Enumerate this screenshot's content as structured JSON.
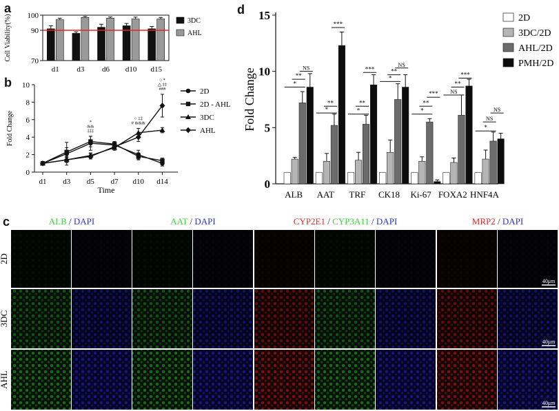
{
  "panels": {
    "a": "a",
    "b": "b",
    "c": "c",
    "d": "d"
  },
  "chart_data": [
    {
      "panel": "a",
      "type": "bar",
      "ylabel": "Cell Viability(%)",
      "categories": [
        "d1",
        "d3",
        "d6",
        "d10",
        "d15"
      ],
      "ylim": [
        70,
        100
      ],
      "yticks": [
        "70",
        "90",
        "100"
      ],
      "reference_line": 90,
      "reference_color": "#e8251f",
      "series": [
        {
          "name": "3DC",
          "color": "#111111",
          "values": [
            91,
            88,
            92,
            93,
            91
          ],
          "errors": [
            2,
            1,
            2,
            1.5,
            1.5
          ]
        },
        {
          "name": "AHL",
          "color": "#9a9a9a",
          "values": [
            97,
            98.5,
            98,
            97.5,
            97.5
          ],
          "errors": [
            1,
            0.7,
            0.8,
            1.2,
            1
          ]
        }
      ]
    },
    {
      "panel": "b",
      "type": "line",
      "xlabel": "Time",
      "ylabel": "Fold Change",
      "x": [
        "d1",
        "d3",
        "d5",
        "d7",
        "d10",
        "d14"
      ],
      "ylim": [
        0,
        10
      ],
      "yticks": [
        "0",
        "2",
        "4",
        "6",
        "8",
        "10"
      ],
      "series": [
        {
          "name": "2D",
          "marker": "circle",
          "values": [
            1,
            2.1,
            3.3,
            3.1,
            2.0,
            1.0
          ],
          "errors": [
            0.1,
            1.3,
            0.8,
            0.3,
            0.5,
            0.3
          ]
        },
        {
          "name": "2D - AHL",
          "marker": "square",
          "values": [
            1,
            2.3,
            3.5,
            3.2,
            1.8,
            1.3
          ],
          "errors": [
            0.1,
            0.5,
            0.6,
            0.3,
            0.4,
            0.3
          ]
        },
        {
          "name": "3DC",
          "marker": "triangle",
          "values": [
            1,
            1.4,
            1.9,
            2.8,
            4.5,
            4.8
          ],
          "errors": [
            0.1,
            0.3,
            0.3,
            0.3,
            0.5,
            0.3
          ]
        },
        {
          "name": "AHL",
          "marker": "diamond",
          "values": [
            1,
            1.4,
            1.8,
            2.9,
            4.0,
            7.6
          ],
          "errors": [
            0.1,
            0.3,
            0.3,
            0.3,
            0.5,
            1.3
          ]
        }
      ],
      "annotations": [
        {
          "x": "d5",
          "lines": [
            "*",
            "&&",
            "‡‡‡"
          ]
        },
        {
          "x": "d10",
          "lines": [
            "○ ‡‡",
            "# &&&"
          ]
        },
        {
          "x": "d14",
          "lines": [
            "○   *",
            "△  ‡‡",
            "###"
          ]
        }
      ]
    },
    {
      "panel": "d",
      "type": "bar",
      "ylabel": "Fold Change",
      "categories": [
        "ALB",
        "AAT",
        "TRF",
        "CK18",
        "Ki-67",
        "FOXA2",
        "HNF4A"
      ],
      "ylim": [
        0,
        15
      ],
      "yticks": [
        "0",
        "5",
        "10",
        "15"
      ],
      "series": [
        {
          "name": "2D",
          "color": "#ffffff",
          "values": [
            1,
            1,
            1,
            1,
            1,
            1,
            1
          ],
          "errors": [
            0,
            0,
            0,
            0,
            0,
            0,
            0
          ]
        },
        {
          "name": "3DC/2D",
          "color": "#b5b5b5",
          "values": [
            2.2,
            2.0,
            2.1,
            2.8,
            2.0,
            1.9,
            2.2
          ],
          "errors": [
            0.15,
            0.7,
            0.7,
            1.1,
            0.4,
            0.4,
            0.8
          ]
        },
        {
          "name": "AHL/2D",
          "color": "#6c6c6c",
          "values": [
            7.2,
            5.2,
            5.3,
            7.5,
            5.5,
            6.1,
            3.8
          ],
          "errors": [
            1.0,
            1.0,
            0.8,
            1.4,
            0.3,
            1.8,
            0.8
          ]
        },
        {
          "name": "PMH/2D",
          "color": "#0d0d0d",
          "values": [
            8.6,
            12.3,
            8.8,
            8.6,
            0.2,
            8.7,
            4.0
          ],
          "errors": [
            1.2,
            1.2,
            0.9,
            1.1,
            0.15,
            0.6,
            0.5
          ]
        }
      ],
      "significance": [
        {
          "cat": 0,
          "from": 0,
          "to": 2,
          "label": "*",
          "y": 8.6
        },
        {
          "cat": 0,
          "from": 1,
          "to": 2,
          "label": "**",
          "y": 9.3
        },
        {
          "cat": 0,
          "from": 2,
          "to": 3,
          "label": "NS",
          "y": 10.0
        },
        {
          "cat": 1,
          "from": 0,
          "to": 2,
          "label": "*",
          "y": 6.3
        },
        {
          "cat": 1,
          "from": 1,
          "to": 2,
          "label": "**",
          "y": 6.9
        },
        {
          "cat": 1,
          "from": 2,
          "to": 3,
          "label": "***",
          "y": 13.9
        },
        {
          "cat": 2,
          "from": 0,
          "to": 2,
          "label": "*",
          "y": 6.2
        },
        {
          "cat": 2,
          "from": 1,
          "to": 2,
          "label": "**",
          "y": 6.9
        },
        {
          "cat": 2,
          "from": 2,
          "to": 3,
          "label": "***",
          "y": 9.9
        },
        {
          "cat": 3,
          "from": 0,
          "to": 2,
          "label": "*",
          "y": 9.1
        },
        {
          "cat": 3,
          "from": 1,
          "to": 2,
          "label": "**",
          "y": 9.7
        },
        {
          "cat": 3,
          "from": 2,
          "to": 3,
          "label": "NS",
          "y": 10.3
        },
        {
          "cat": 4,
          "from": 0,
          "to": 2,
          "label": "*",
          "y": 6.2
        },
        {
          "cat": 4,
          "from": 1,
          "to": 2,
          "label": "**",
          "y": 6.9
        },
        {
          "cat": 4,
          "from": 2,
          "to": 3,
          "label": "***",
          "y": 7.7
        },
        {
          "cat": 5,
          "from": 0,
          "to": 2,
          "label": "NS",
          "y": 7.9
        },
        {
          "cat": 5,
          "from": 1,
          "to": 2,
          "label": "**",
          "y": 8.6
        },
        {
          "cat": 5,
          "from": 2,
          "to": 3,
          "label": "***",
          "y": 9.4
        },
        {
          "cat": 6,
          "from": 0,
          "to": 2,
          "label": "*",
          "y": 4.7
        },
        {
          "cat": 6,
          "from": 1,
          "to": 2,
          "label": "NS",
          "y": 5.5
        },
        {
          "cat": 6,
          "from": 2,
          "to": 3,
          "label": "NS",
          "y": 6.3
        }
      ]
    }
  ],
  "micrographs": {
    "rows": [
      "2D",
      "3DC",
      "AHL"
    ],
    "groups": [
      {
        "labels": [
          {
            "text": "ALB",
            "color": "#3bd23b"
          },
          {
            "text": " / ",
            "color": "#222222"
          },
          {
            "text": "DAPI",
            "color": "#2b35d6"
          }
        ],
        "channels": [
          "green",
          "blue"
        ]
      },
      {
        "labels": [
          {
            "text": "AAT",
            "color": "#3bd23b"
          },
          {
            "text": " / ",
            "color": "#222222"
          },
          {
            "text": "DAPI",
            "color": "#2b35d6"
          }
        ],
        "channels": [
          "green",
          "blue"
        ]
      },
      {
        "labels": [
          {
            "text": "CYP2E1",
            "color": "#e22a2a"
          },
          {
            "text": " / ",
            "color": "#222222"
          },
          {
            "text": "CYP3A11",
            "color": "#3bd23b"
          },
          {
            "text": " / ",
            "color": "#222222"
          },
          {
            "text": "DAPI",
            "color": "#2b35d6"
          }
        ],
        "channels": [
          "red",
          "green",
          "blue"
        ]
      },
      {
        "labels": [
          {
            "text": "MRP2",
            "color": "#e22a2a"
          },
          {
            "text": " / ",
            "color": "#222222"
          },
          {
            "text": "DAPI",
            "color": "#2b35d6"
          }
        ],
        "channels": [
          "red",
          "blue"
        ]
      }
    ],
    "scale_bar": "40μm"
  }
}
